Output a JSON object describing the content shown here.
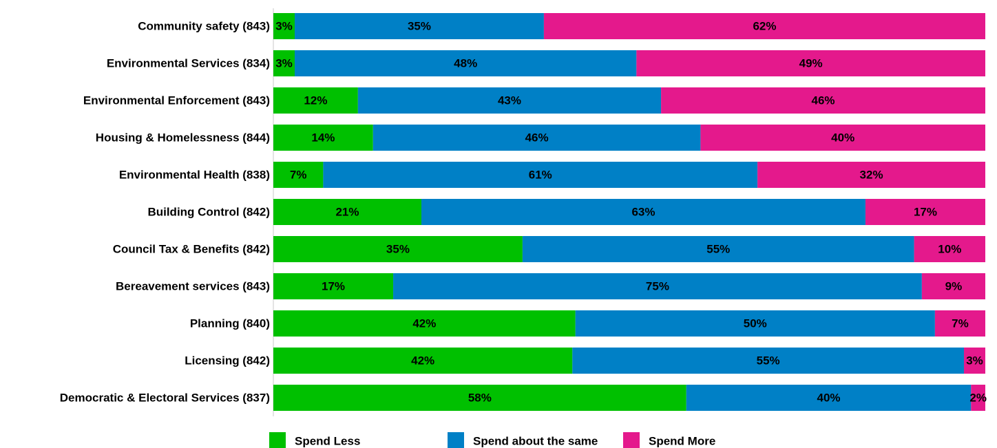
{
  "chart_data": {
    "type": "bar",
    "orientation": "horizontal",
    "stacked": true,
    "percent_stacked": true,
    "categories": [
      "Community safety (843)",
      "Environmental Services  (834)",
      "Environmental Enforcement  (843)",
      "Housing & Homelessness (844)",
      "Environmental Health  (838)",
      "Building Control (842)",
      "Council Tax & Benefits (842)",
      "Bereavement services (843)",
      "Planning  (840)",
      "Licensing (842)",
      "Democratic & Electoral Services (837)"
    ],
    "series": [
      {
        "name": "Spend Less",
        "color": "#00c000",
        "values": [
          3,
          3,
          12,
          14,
          7,
          21,
          35,
          17,
          42,
          42,
          58
        ],
        "labels": [
          "3%",
          "3%",
          "12%",
          "14%",
          "7%",
          "21%",
          "35%",
          "17%",
          "42%",
          "42%",
          "58%"
        ]
      },
      {
        "name": "Spend about the same",
        "color": "#0080c6",
        "values": [
          35,
          48,
          43,
          46,
          61,
          63,
          55,
          75,
          50,
          55,
          40
        ],
        "labels": [
          "35%",
          "48%",
          "43%",
          "46%",
          "61%",
          "63%",
          "55%",
          "75%",
          "50%",
          "55%",
          "40%"
        ]
      },
      {
        "name": "Spend More",
        "color": "#e4198c",
        "values": [
          62,
          49,
          46,
          40,
          32,
          17,
          10,
          9,
          7,
          3,
          2
        ],
        "labels": [
          "62%",
          "49%",
          "46%",
          "40%",
          "32%",
          "17%",
          "10%",
          "9%",
          "7%",
          "3%",
          "2%"
        ]
      }
    ],
    "xlim": [
      0,
      100
    ],
    "grid": false,
    "legend": "bottom"
  }
}
